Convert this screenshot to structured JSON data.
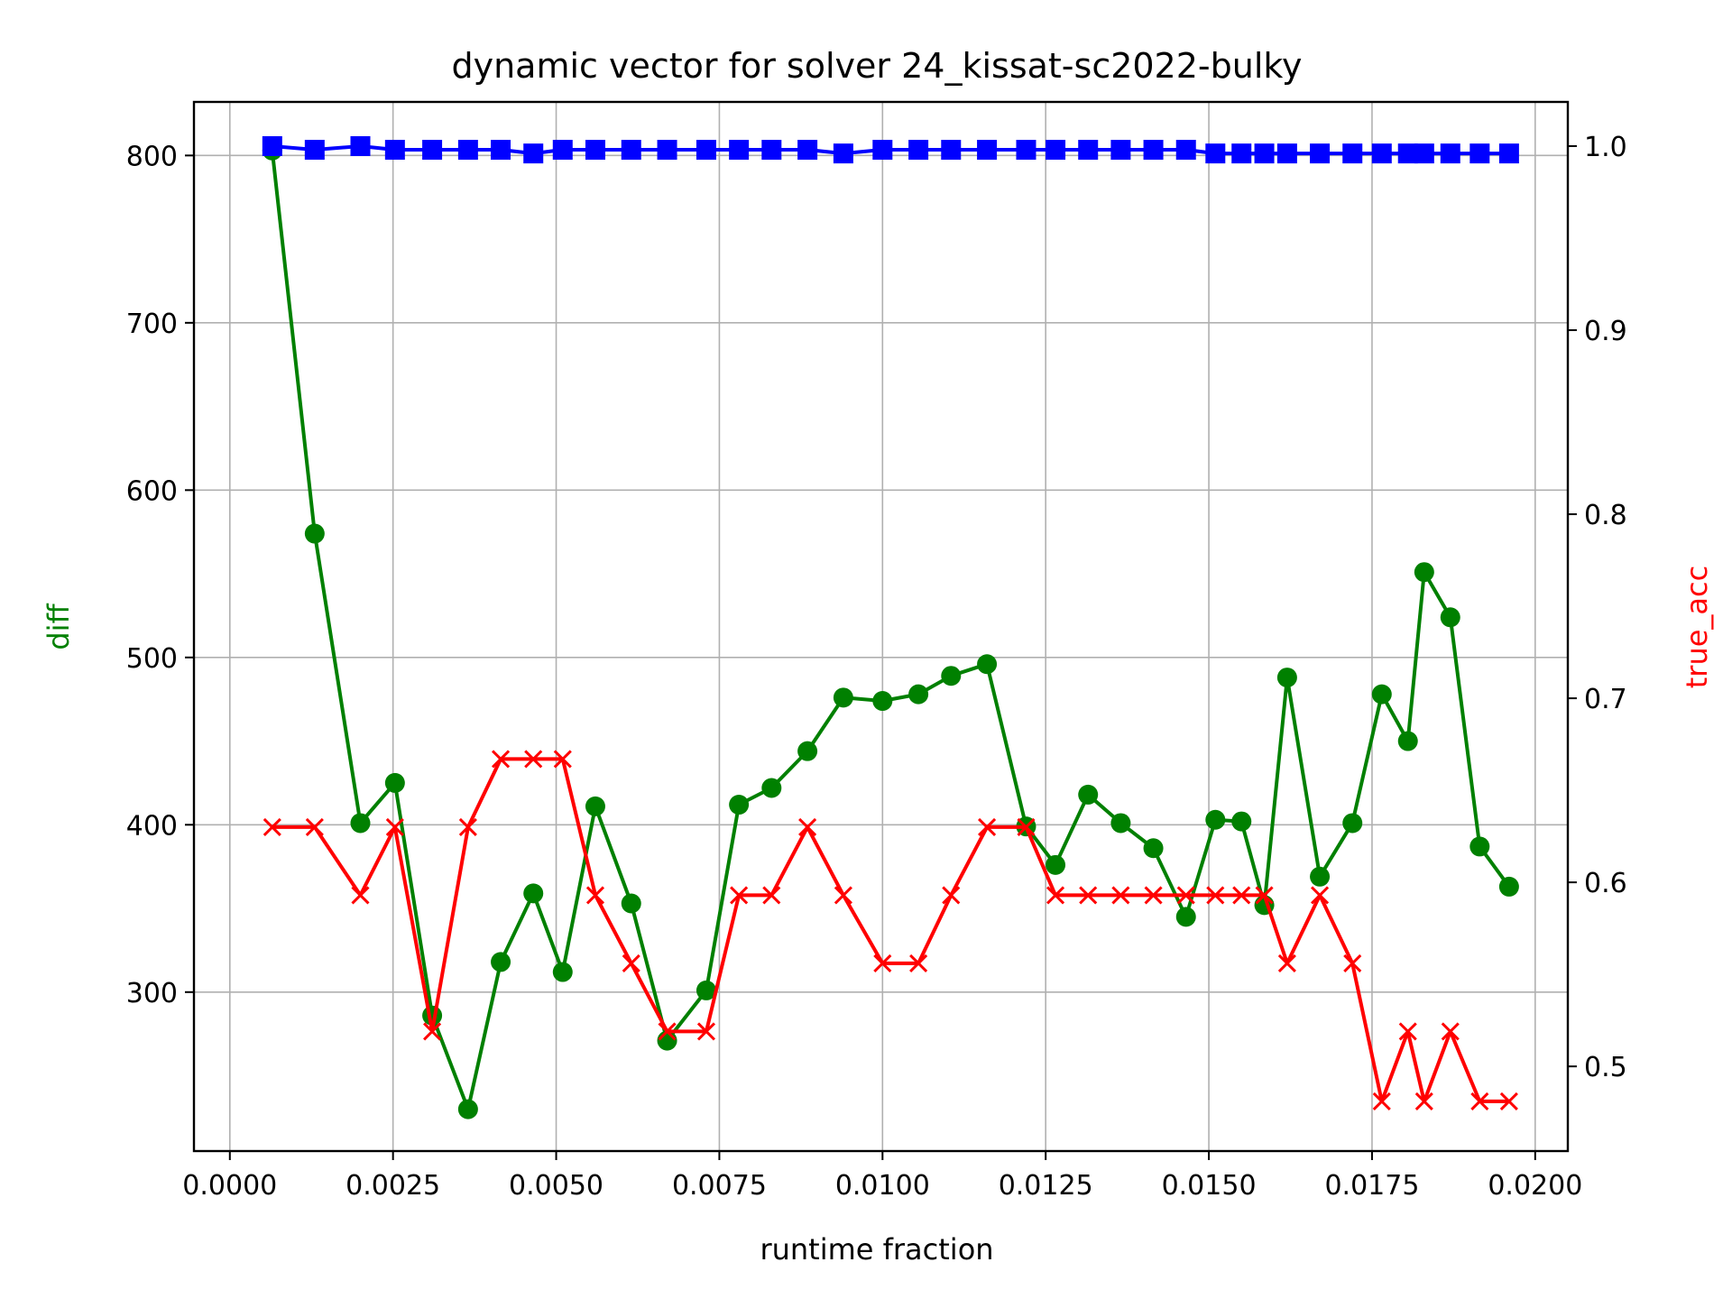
{
  "chart_data": {
    "type": "line",
    "title": "dynamic vector for solver 24_kissat-sc2022-bulky",
    "xlabel": "runtime fraction",
    "ylabel": "diff",
    "y2label": "true_acc",
    "xlim": [
      -0.00055,
      0.0205
    ],
    "ylim": [
      205,
      832
    ],
    "y2lim": [
      0.454,
      1.024
    ],
    "xticks": [
      0.0,
      0.0025,
      0.005,
      0.0075,
      0.01,
      0.0125,
      0.015,
      0.0175,
      0.02
    ],
    "xtick_labels": [
      "0.0000",
      "0.0025",
      "0.0050",
      "0.0075",
      "0.0100",
      "0.0125",
      "0.0150",
      "0.0175",
      "0.0200"
    ],
    "yticks": [
      300,
      400,
      500,
      600,
      700,
      800
    ],
    "ytick_labels": [
      "300",
      "400",
      "500",
      "600",
      "700",
      "800"
    ],
    "y2ticks": [
      0.5,
      0.6,
      0.7,
      0.8,
      0.9,
      1.0
    ],
    "y2tick_labels": [
      "0.5",
      "0.6",
      "0.7",
      "0.8",
      "0.9",
      "1.0"
    ],
    "grid": true,
    "x": [
      0.00065,
      0.0013,
      0.002,
      0.00253,
      0.0031,
      0.00365,
      0.00415,
      0.00465,
      0.0051,
      0.0056,
      0.00615,
      0.0067,
      0.0073,
      0.0078,
      0.0083,
      0.00885,
      0.0094,
      0.01,
      0.01055,
      0.01105,
      0.0116,
      0.0122,
      0.01265,
      0.01315,
      0.01365,
      0.01415,
      0.01465,
      0.0151,
      0.0155,
      0.01585,
      0.0162,
      0.0167,
      0.0172,
      0.01765,
      0.01805,
      0.0183,
      0.0187,
      0.01915,
      0.0196
    ],
    "series": [
      {
        "axis": "left",
        "color": "#008000",
        "marker": "circle",
        "values": [
          803,
          574,
          401,
          425,
          286,
          230,
          318,
          359,
          312,
          411,
          353,
          271,
          301,
          412,
          422,
          444,
          476,
          474,
          478,
          489,
          496,
          399,
          376,
          418,
          401,
          386,
          345,
          403,
          402,
          352,
          488,
          369,
          401,
          478,
          450,
          551,
          524,
          387,
          363
        ]
      },
      {
        "axis": "right",
        "color": "#ff0000",
        "marker": "x",
        "values": [
          0.63,
          0.63,
          0.593,
          0.63,
          0.519,
          0.63,
          0.667,
          0.667,
          0.667,
          0.593,
          0.556,
          0.519,
          0.519,
          0.593,
          0.593,
          0.63,
          0.593,
          0.556,
          0.556,
          0.593,
          0.63,
          0.63,
          0.593,
          0.593,
          0.593,
          0.593,
          0.593,
          0.593,
          0.593,
          0.593,
          0.556,
          0.593,
          0.556,
          0.481,
          0.519,
          0.481,
          0.519,
          0.481,
          0.481
        ]
      },
      {
        "axis": "right",
        "color": "#0000ff",
        "marker": "square",
        "values": [
          1.0,
          0.998,
          1.0,
          0.998,
          0.998,
          0.998,
          0.998,
          0.996,
          0.998,
          0.998,
          0.998,
          0.998,
          0.998,
          0.998,
          0.998,
          0.998,
          0.996,
          0.998,
          0.998,
          0.998,
          0.998,
          0.998,
          0.998,
          0.998,
          0.998,
          0.998,
          0.998,
          0.996,
          0.996,
          0.996,
          0.996,
          0.996,
          0.996,
          0.996,
          0.996,
          0.996,
          0.996,
          0.996,
          0.996
        ]
      }
    ]
  }
}
